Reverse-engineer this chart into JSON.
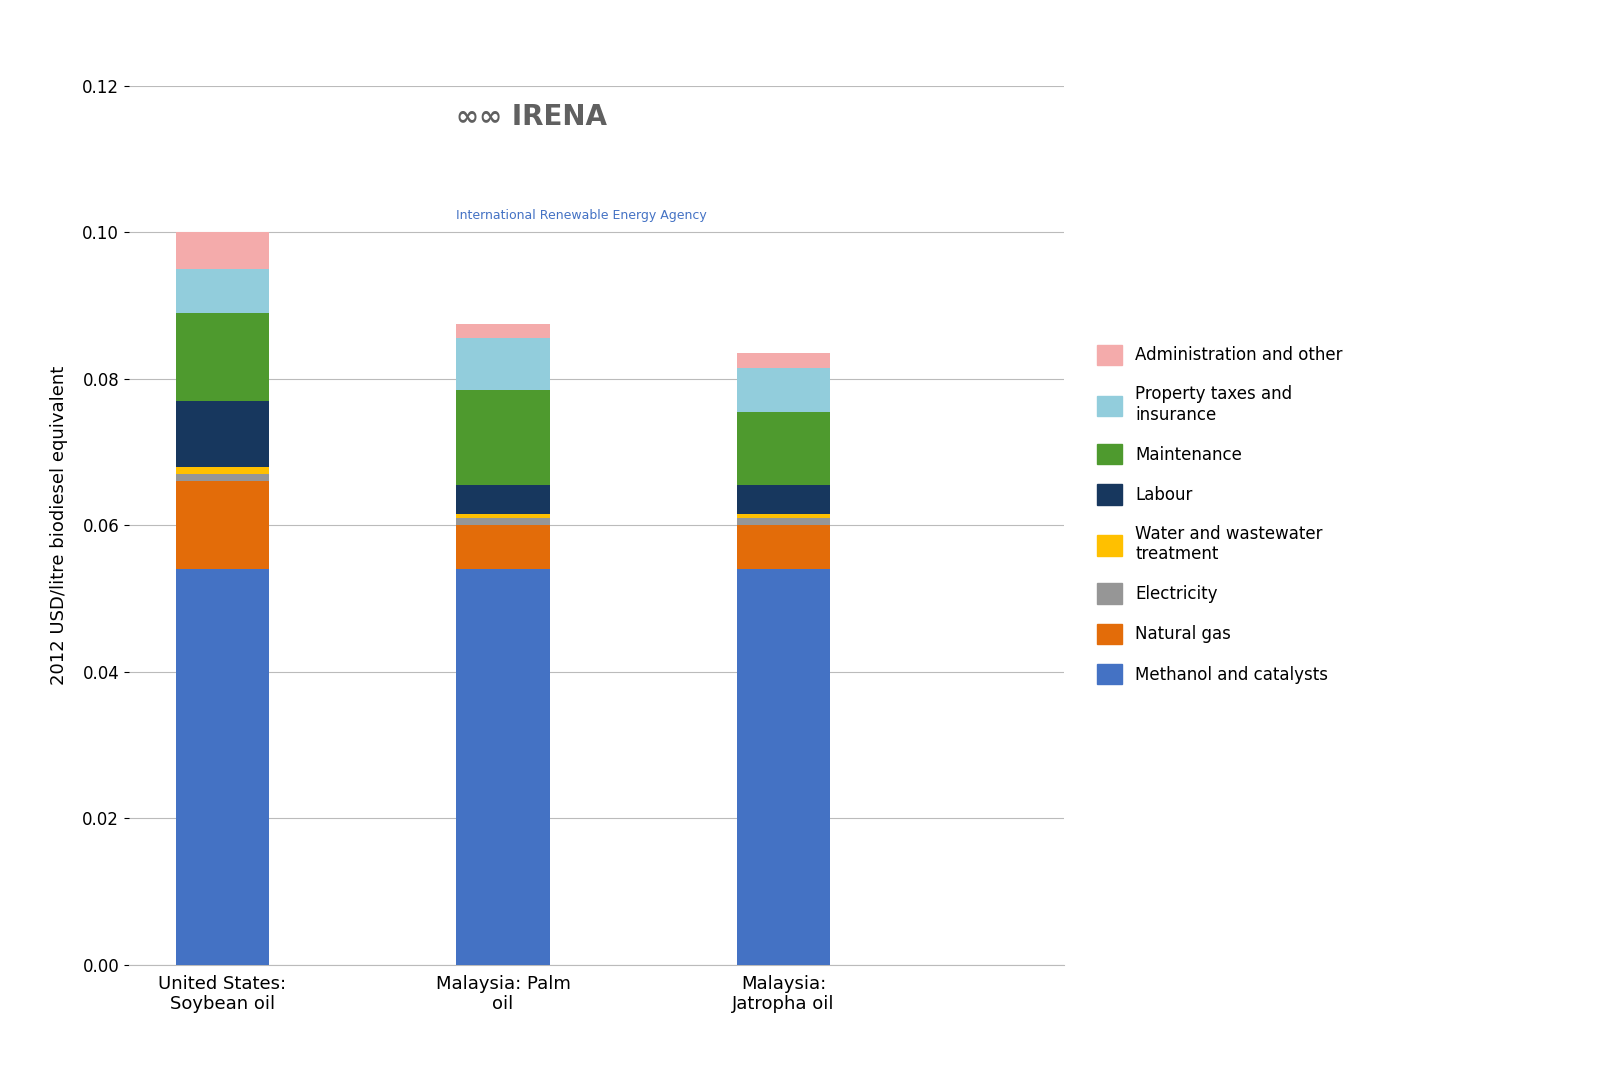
{
  "categories": [
    "United States:\nSoybean oil",
    "Malaysia: Palm\noil",
    "Malaysia:\nJatropha oil"
  ],
  "series": [
    {
      "label": "Methanol and catalysts",
      "color": "#4472C4",
      "values": [
        0.054,
        0.054,
        0.054
      ]
    },
    {
      "label": "Natural gas",
      "color": "#E36C09",
      "values": [
        0.012,
        0.006,
        0.006
      ]
    },
    {
      "label": "Electricity",
      "color": "#969696",
      "values": [
        0.001,
        0.001,
        0.001
      ]
    },
    {
      "label": "Water and wastewater\ntreatment",
      "color": "#FFC000",
      "values": [
        0.001,
        0.0005,
        0.0005
      ]
    },
    {
      "label": "Labour",
      "color": "#17375E",
      "values": [
        0.009,
        0.004,
        0.004
      ]
    },
    {
      "label": "Maintenance",
      "color": "#4E9A2E",
      "values": [
        0.012,
        0.013,
        0.01
      ]
    },
    {
      "label": "Property taxes and\ninsurance",
      "color": "#92CDDC",
      "values": [
        0.006,
        0.007,
        0.006
      ]
    },
    {
      "label": "Administration and other",
      "color": "#F4ABAB",
      "values": [
        0.005,
        0.002,
        0.002
      ]
    }
  ],
  "ylabel": "2012 USD/litre biodiesel equivalent",
  "ylim": [
    0,
    0.12
  ],
  "yticks": [
    0.0,
    0.02,
    0.04,
    0.06,
    0.08,
    0.1,
    0.12
  ],
  "background_color": "#FFFFFF",
  "bar_width": 0.25,
  "bar_positions": [
    0.25,
    1.0,
    1.75
  ],
  "xlim": [
    0.0,
    2.5
  ],
  "xtick_positions": [
    0.25,
    1.0,
    1.75
  ]
}
